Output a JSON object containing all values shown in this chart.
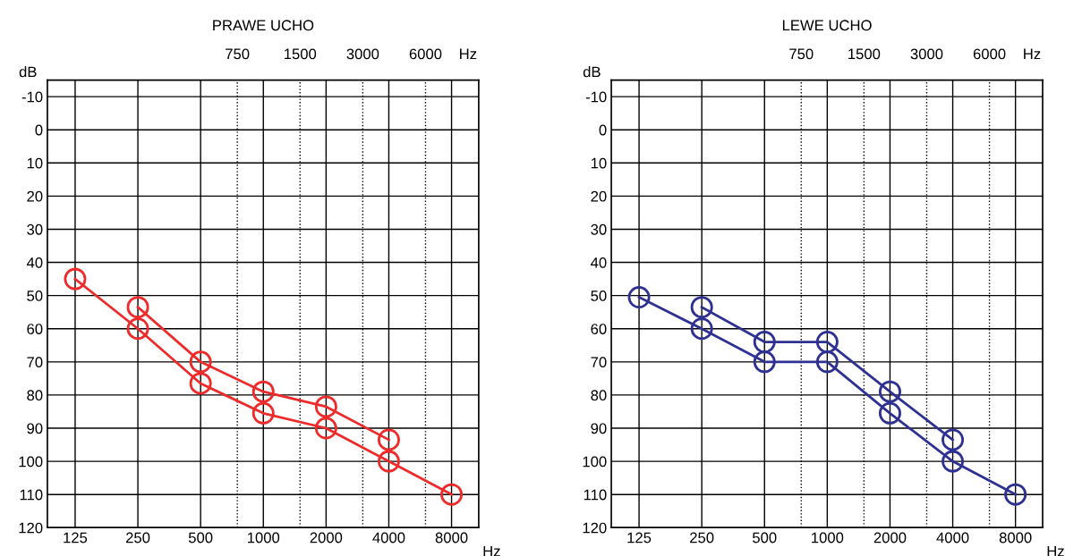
{
  "chart_data": [
    {
      "type": "line",
      "title": "PRAWE UCHO",
      "xlabel": "Hz",
      "ylabel": "dB",
      "log": "x",
      "grid": true,
      "marker": "circle",
      "annotations": [
        "Hz"
      ],
      "xlim": [
        92,
        10800
      ],
      "xticks": [
        125,
        250,
        500,
        1000,
        2000,
        4000,
        8000
      ],
      "ylim": [
        120,
        -15
      ],
      "yticks": [
        -10,
        0,
        10,
        20,
        30,
        40,
        50,
        60,
        70,
        80,
        90,
        100,
        110,
        120
      ],
      "ref_lines": [
        {
          "axis": "x",
          "value": 750,
          "label": "750",
          "line_style": "dotted",
          "color": "#000000"
        },
        {
          "axis": "x",
          "value": 1500,
          "label": "1500",
          "line_style": "dotted",
          "color": "#000000"
        },
        {
          "axis": "x",
          "value": 3000,
          "label": "3000",
          "line_style": "dotted",
          "color": "#000000"
        },
        {
          "axis": "x",
          "value": 6000,
          "label": "6000",
          "line_style": "dotted",
          "color": "#000000"
        }
      ],
      "series": [
        {
          "color": "#ee2b2b",
          "x": [
            125,
            250,
            500,
            1000,
            2000,
            4000,
            8000
          ],
          "values": [
            45,
            60,
            76.5,
            85.5,
            90,
            100,
            110
          ]
        },
        {
          "color": "#ee2b2b",
          "x": [
            250,
            500,
            1000,
            2000,
            4000
          ],
          "values": [
            53.5,
            70,
            79,
            83.5,
            93.5
          ]
        }
      ]
    },
    {
      "type": "line",
      "title": "LEWE UCHO",
      "xlabel": "Hz",
      "ylabel": "dB",
      "log": "x",
      "grid": true,
      "marker": "circle",
      "annotations": [
        "Hz"
      ],
      "xlim": [
        92,
        10800
      ],
      "xticks": [
        125,
        250,
        500,
        1000,
        2000,
        4000,
        8000
      ],
      "ylim": [
        120,
        -15
      ],
      "yticks": [
        -10,
        0,
        10,
        20,
        30,
        40,
        50,
        60,
        70,
        80,
        90,
        100,
        110,
        120
      ],
      "ref_lines": [
        {
          "axis": "x",
          "value": 750,
          "label": "750",
          "line_style": "dotted",
          "color": "#000000"
        },
        {
          "axis": "x",
          "value": 1500,
          "label": "1500",
          "line_style": "dotted",
          "color": "#000000"
        },
        {
          "axis": "x",
          "value": 3000,
          "label": "3000",
          "line_style": "dotted",
          "color": "#000000"
        },
        {
          "axis": "x",
          "value": 6000,
          "label": "6000",
          "line_style": "dotted",
          "color": "#000000"
        }
      ],
      "series": [
        {
          "color": "#2e3192",
          "x": [
            125,
            250,
            500,
            1000,
            2000,
            4000,
            8000
          ],
          "values": [
            50.5,
            60,
            70,
            70,
            85.5,
            100,
            110
          ]
        },
        {
          "color": "#2e3192",
          "x": [
            250,
            500,
            1000,
            2000,
            4000
          ],
          "values": [
            53.5,
            64,
            64,
            79,
            93.5
          ]
        }
      ]
    }
  ]
}
